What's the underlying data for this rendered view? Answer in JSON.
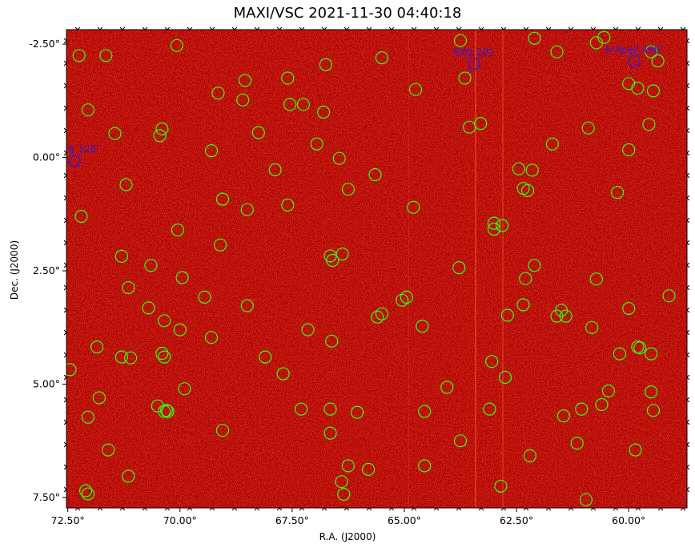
{
  "title": "MAXI/VSC 2021-11-30 04:40:18",
  "xlabel": "R.A. (J2000)",
  "ylabel": "Dec. (J2000)",
  "x_ticks": [
    {
      "value": 72.5,
      "label": "72.50°"
    },
    {
      "value": 70.0,
      "label": "70.00°"
    },
    {
      "value": 67.5,
      "label": "67.50°"
    },
    {
      "value": 65.0,
      "label": "65.00°"
    },
    {
      "value": 62.5,
      "label": "62.50°"
    },
    {
      "value": 60.0,
      "label": "60.00°"
    }
  ],
  "y_ticks": [
    {
      "value": -2.5,
      "label": "-2.50°"
    },
    {
      "value": 0.0,
      "label": "0.00°"
    },
    {
      "value": 2.5,
      "label": "2.50°"
    },
    {
      "value": 5.0,
      "label": "5.00°"
    },
    {
      "value": 7.5,
      "label": "7.50°"
    }
  ],
  "x_range": [
    72.53,
    58.7
  ],
  "y_range": [
    -2.82,
    7.73
  ],
  "colors": {
    "background": "#c00000",
    "marker": "#33ff11",
    "catalog": "#2b1ce6"
  },
  "labeled_sources": [
    {
      "name": "b'Ark 120'",
      "ra": 72.35,
      "dec": 0.07
    },
    {
      "name": "EXO 201",
      "ra": 63.45,
      "dec": -2.07
    },
    {
      "name": "b'Abell 496'",
      "ra": 59.88,
      "dec": -2.12
    }
  ],
  "markers": [
    [
      72.25,
      -2.25
    ],
    [
      71.65,
      -2.25
    ],
    [
      70.07,
      -2.47
    ],
    [
      72.05,
      -1.05
    ],
    [
      71.45,
      -0.53
    ],
    [
      70.4,
      -0.63
    ],
    [
      70.45,
      -0.48
    ],
    [
      69.15,
      -1.42
    ],
    [
      68.55,
      -1.7
    ],
    [
      68.6,
      -1.27
    ],
    [
      67.6,
      -1.75
    ],
    [
      67.55,
      -1.17
    ],
    [
      67.25,
      -1.17
    ],
    [
      66.8,
      -1.0
    ],
    [
      66.75,
      -2.05
    ],
    [
      65.5,
      -2.2
    ],
    [
      64.75,
      -1.5
    ],
    [
      63.75,
      -2.58
    ],
    [
      63.65,
      -1.75
    ],
    [
      63.55,
      -0.67
    ],
    [
      63.3,
      -0.75
    ],
    [
      62.1,
      -2.63
    ],
    [
      61.6,
      -2.33
    ],
    [
      60.72,
      -2.53
    ],
    [
      60.55,
      -2.65
    ],
    [
      59.5,
      -2.33
    ],
    [
      59.35,
      -2.13
    ],
    [
      60.0,
      -1.63
    ],
    [
      59.8,
      -1.53
    ],
    [
      59.45,
      -1.47
    ],
    [
      59.55,
      -0.73
    ],
    [
      60.9,
      -0.65
    ],
    [
      61.7,
      -0.3
    ],
    [
      60.0,
      -0.17
    ],
    [
      62.45,
      0.25
    ],
    [
      62.15,
      0.28
    ],
    [
      62.35,
      0.68
    ],
    [
      62.25,
      0.73
    ],
    [
      60.25,
      0.77
    ],
    [
      69.3,
      -0.15
    ],
    [
      68.25,
      -0.55
    ],
    [
      67.88,
      0.27
    ],
    [
      66.95,
      -0.3
    ],
    [
      66.45,
      0.02
    ],
    [
      65.65,
      0.38
    ],
    [
      66.25,
      0.7
    ],
    [
      64.8,
      1.1
    ],
    [
      71.2,
      0.6
    ],
    [
      72.2,
      1.3
    ],
    [
      69.05,
      0.92
    ],
    [
      68.5,
      1.15
    ],
    [
      67.6,
      1.05
    ],
    [
      70.05,
      1.6
    ],
    [
      69.1,
      1.93
    ],
    [
      71.3,
      2.18
    ],
    [
      70.65,
      2.38
    ],
    [
      71.15,
      2.87
    ],
    [
      69.95,
      2.65
    ],
    [
      69.45,
      3.08
    ],
    [
      68.5,
      3.27
    ],
    [
      70.7,
      3.32
    ],
    [
      70.35,
      3.6
    ],
    [
      70.0,
      3.8
    ],
    [
      69.3,
      3.97
    ],
    [
      66.65,
      2.17
    ],
    [
      66.6,
      2.27
    ],
    [
      66.38,
      2.13
    ],
    [
      63.78,
      2.43
    ],
    [
      63.0,
      1.58
    ],
    [
      63.0,
      1.45
    ],
    [
      62.82,
      1.5
    ],
    [
      62.1,
      2.38
    ],
    [
      62.3,
      2.67
    ],
    [
      61.5,
      3.37
    ],
    [
      61.6,
      3.5
    ],
    [
      61.4,
      3.5
    ],
    [
      62.35,
      3.25
    ],
    [
      62.7,
      3.48
    ],
    [
      60.72,
      2.68
    ],
    [
      60.0,
      3.33
    ],
    [
      60.82,
      3.75
    ],
    [
      59.8,
      4.18
    ],
    [
      59.75,
      4.2
    ],
    [
      59.5,
      4.33
    ],
    [
      60.2,
      4.33
    ],
    [
      65.5,
      3.45
    ],
    [
      65.6,
      3.52
    ],
    [
      65.05,
      3.15
    ],
    [
      64.95,
      3.08
    ],
    [
      64.6,
      3.72
    ],
    [
      67.15,
      3.8
    ],
    [
      66.62,
      4.05
    ],
    [
      71.85,
      4.18
    ],
    [
      71.3,
      4.4
    ],
    [
      71.1,
      4.42
    ],
    [
      70.4,
      4.32
    ],
    [
      70.35,
      4.4
    ],
    [
      68.1,
      4.4
    ],
    [
      67.7,
      4.77
    ],
    [
      72.45,
      4.68
    ],
    [
      62.75,
      4.85
    ],
    [
      63.05,
      4.5
    ],
    [
      64.05,
      5.07
    ],
    [
      60.45,
      5.15
    ],
    [
      59.5,
      5.17
    ],
    [
      60.6,
      5.45
    ],
    [
      61.05,
      5.55
    ],
    [
      61.45,
      5.7
    ],
    [
      59.45,
      5.58
    ],
    [
      71.8,
      5.3
    ],
    [
      69.9,
      5.1
    ],
    [
      70.5,
      5.48
    ],
    [
      70.35,
      5.6
    ],
    [
      70.27,
      5.6
    ],
    [
      70.3,
      5.58
    ],
    [
      72.05,
      5.73
    ],
    [
      69.05,
      6.02
    ],
    [
      67.3,
      5.55
    ],
    [
      66.65,
      5.55
    ],
    [
      66.05,
      5.62
    ],
    [
      64.55,
      5.6
    ],
    [
      63.1,
      5.55
    ],
    [
      66.65,
      6.08
    ],
    [
      63.75,
      6.25
    ],
    [
      61.15,
      6.3
    ],
    [
      59.85,
      6.45
    ],
    [
      71.6,
      6.45
    ],
    [
      71.15,
      7.03
    ],
    [
      72.1,
      7.35
    ],
    [
      72.05,
      7.42
    ],
    [
      66.25,
      6.8
    ],
    [
      65.8,
      6.88
    ],
    [
      64.55,
      6.8
    ],
    [
      62.2,
      6.58
    ],
    [
      66.4,
      7.15
    ],
    [
      66.35,
      7.43
    ],
    [
      62.85,
      7.25
    ],
    [
      60.95,
      7.55
    ],
    [
      59.1,
      3.05
    ]
  ]
}
